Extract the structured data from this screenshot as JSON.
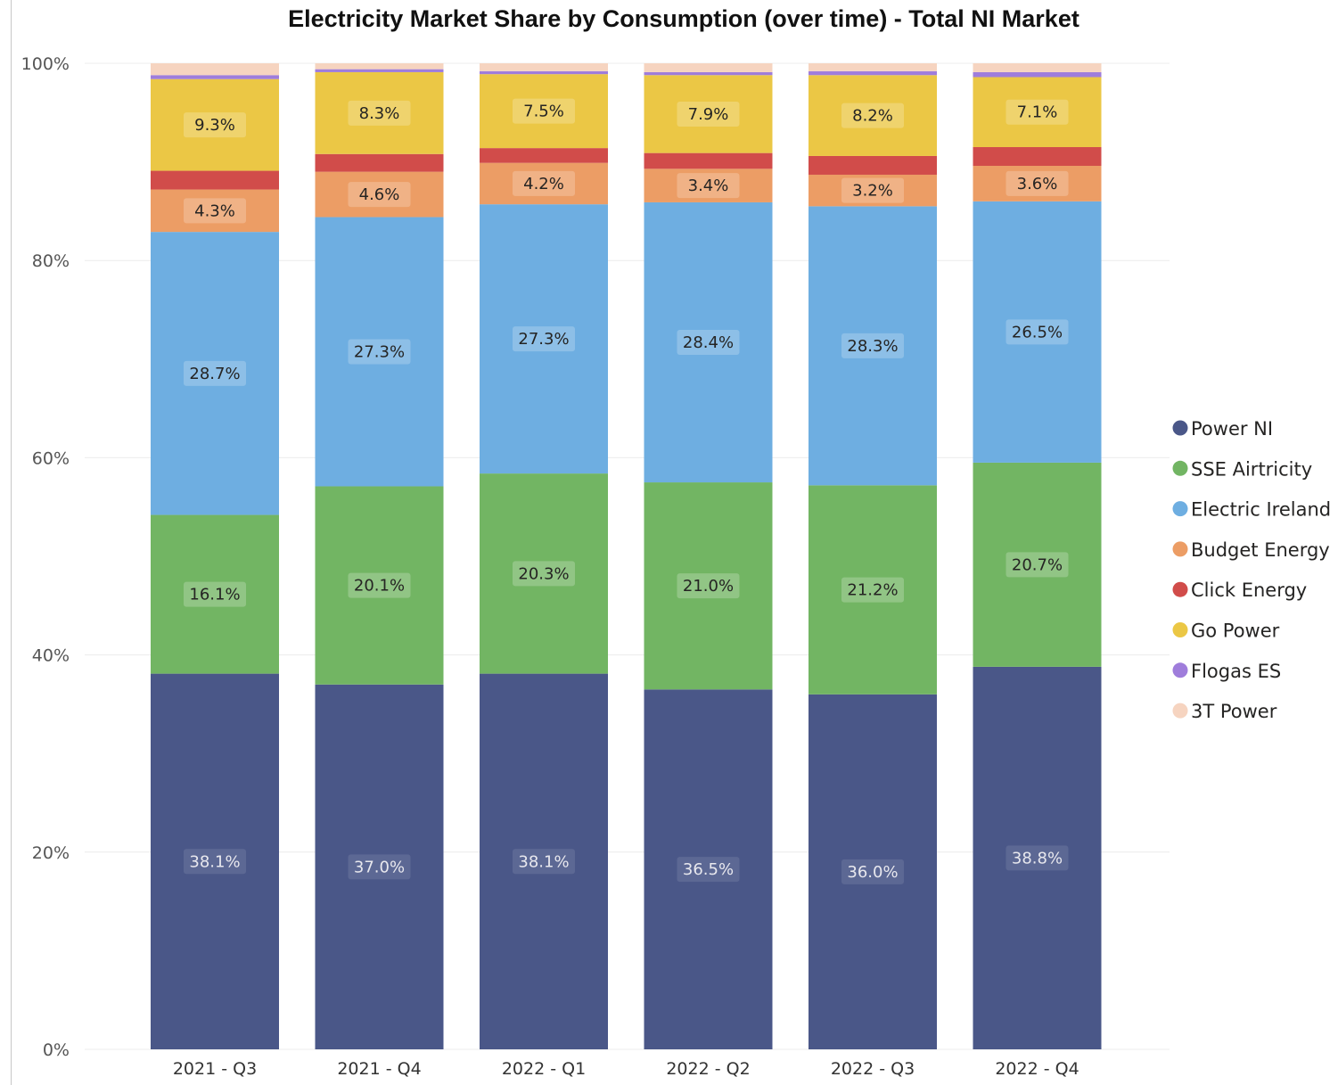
{
  "chart_data": {
    "type": "bar",
    "stacked": "percent",
    "title": "Electricity Market Share by Consumption (over time) - Total NI Market",
    "xlabel": "",
    "ylabel": "",
    "ylim": [
      0,
      100
    ],
    "yticks": [
      "0%",
      "20%",
      "40%",
      "60%",
      "80%",
      "100%"
    ],
    "categories": [
      "2021 - Q3",
      "2021 - Q4",
      "2022 - Q1",
      "2022 - Q2",
      "2022 - Q3",
      "2022 - Q4"
    ],
    "grid": true,
    "legend_position": "right",
    "series": [
      {
        "name": "Power NI",
        "color": "#4a5788",
        "values": [
          38.1,
          37.0,
          38.1,
          36.5,
          36.0,
          38.8
        ],
        "labels": [
          "38.1%",
          "37.0%",
          "38.1%",
          "36.5%",
          "36.0%",
          "38.8%"
        ]
      },
      {
        "name": "SSE Airtricity",
        "color": "#72b563",
        "values": [
          16.1,
          20.1,
          20.3,
          21.0,
          21.2,
          20.7
        ],
        "labels": [
          "16.1%",
          "20.1%",
          "20.3%",
          "21.0%",
          "21.2%",
          "20.7%"
        ]
      },
      {
        "name": "Electric Ireland",
        "color": "#6eaee1",
        "values": [
          28.7,
          27.3,
          27.3,
          28.4,
          28.3,
          26.5
        ],
        "labels": [
          "28.7%",
          "27.3%",
          "27.3%",
          "28.4%",
          "28.3%",
          "26.5%"
        ]
      },
      {
        "name": "Budget Energy",
        "color": "#ec9d65",
        "values": [
          4.3,
          4.6,
          4.2,
          3.4,
          3.2,
          3.6
        ],
        "labels": [
          "4.3%",
          "4.6%",
          "4.2%",
          "3.4%",
          "3.2%",
          "3.6%"
        ]
      },
      {
        "name": "Click Energy",
        "color": "#d14c4a",
        "values": [
          1.9,
          1.8,
          1.5,
          1.6,
          1.9,
          1.9
        ],
        "labels": [
          "",
          "",
          "",
          "",
          "",
          ""
        ]
      },
      {
        "name": "Go Power",
        "color": "#ebc745",
        "values": [
          9.3,
          8.3,
          7.5,
          7.9,
          8.2,
          7.1
        ],
        "labels": [
          "9.3%",
          "8.3%",
          "7.5%",
          "7.9%",
          "8.2%",
          "7.1%"
        ]
      },
      {
        "name": "Flogas ES",
        "color": "#9f7ddb",
        "values": [
          0.4,
          0.3,
          0.3,
          0.3,
          0.4,
          0.5
        ],
        "labels": [
          "",
          "",
          "",
          "",
          "",
          ""
        ]
      },
      {
        "name": "3T Power",
        "color": "#f6d4c0",
        "values": [
          1.2,
          0.6,
          0.8,
          0.9,
          0.8,
          0.9
        ],
        "labels": [
          "",
          "",
          "",
          "",
          "",
          ""
        ]
      }
    ]
  }
}
